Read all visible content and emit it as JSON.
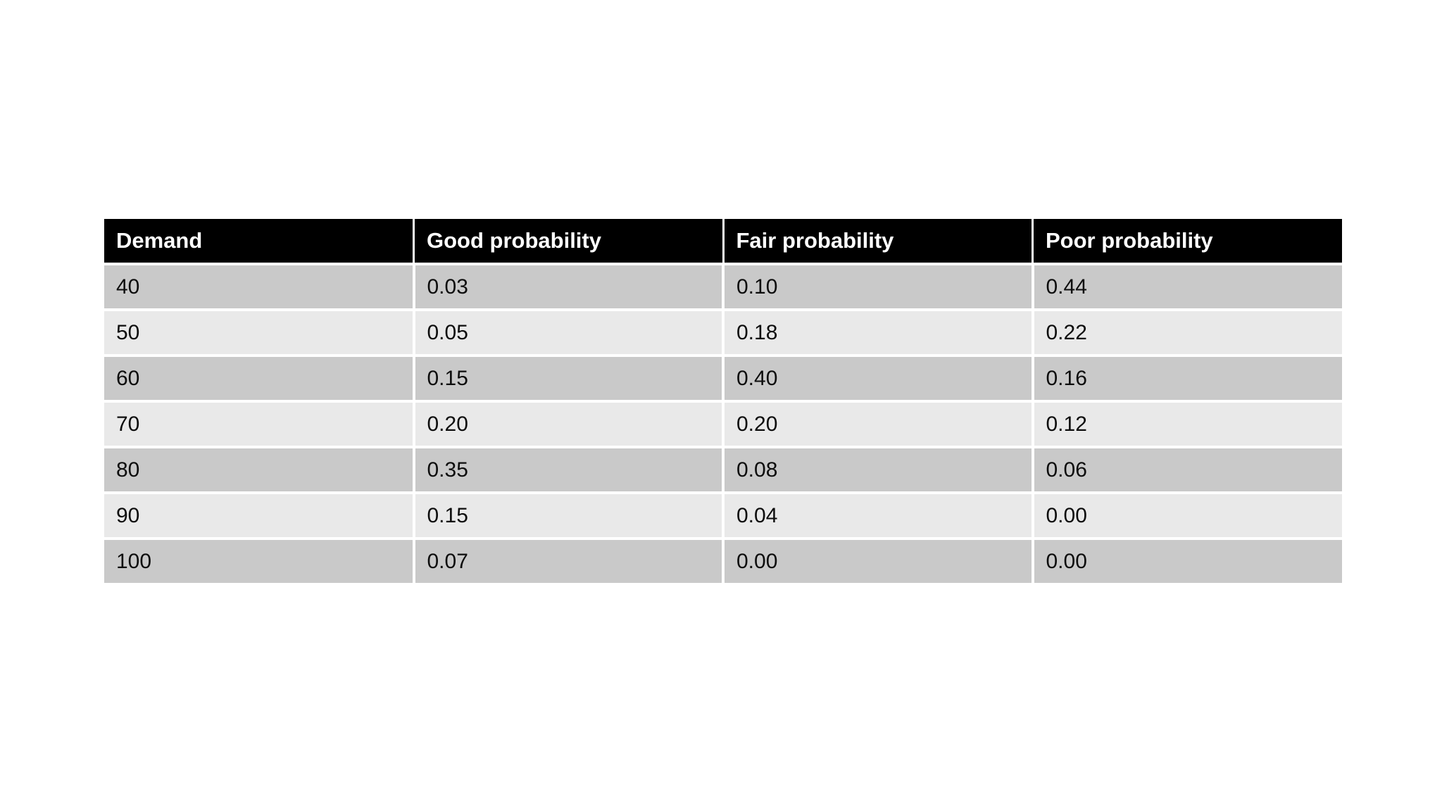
{
  "table": {
    "headers": [
      "Demand",
      "Good probability",
      "Fair probability",
      "Poor probability"
    ],
    "rows": [
      [
        "40",
        "0.03",
        "0.10",
        "0.44"
      ],
      [
        "50",
        "0.05",
        "0.18",
        "0.22"
      ],
      [
        "60",
        "0.15",
        "0.40",
        "0.16"
      ],
      [
        "70",
        "0.20",
        "0.20",
        "0.12"
      ],
      [
        "80",
        "0.35",
        "0.08",
        "0.06"
      ],
      [
        "90",
        "0.15",
        "0.04",
        "0.00"
      ],
      [
        "100",
        "0.07",
        "0.00",
        "0.00"
      ]
    ]
  },
  "colors": {
    "header_bg": "#000000",
    "header_text": "#ffffff",
    "row_band_dark": "#c9c9c9",
    "row_band_light": "#e9e9e9",
    "background": "#ffffff"
  },
  "chart_data": {
    "type": "table",
    "title": "",
    "columns": [
      "Demand",
      "Good probability",
      "Fair probability",
      "Poor probability"
    ],
    "rows": [
      [
        40,
        0.03,
        0.1,
        0.44
      ],
      [
        50,
        0.05,
        0.18,
        0.22
      ],
      [
        60,
        0.15,
        0.4,
        0.16
      ],
      [
        70,
        0.2,
        0.2,
        0.12
      ],
      [
        80,
        0.35,
        0.08,
        0.06
      ],
      [
        90,
        0.15,
        0.04,
        0.0
      ],
      [
        100,
        0.07,
        0.0,
        0.0
      ]
    ]
  }
}
